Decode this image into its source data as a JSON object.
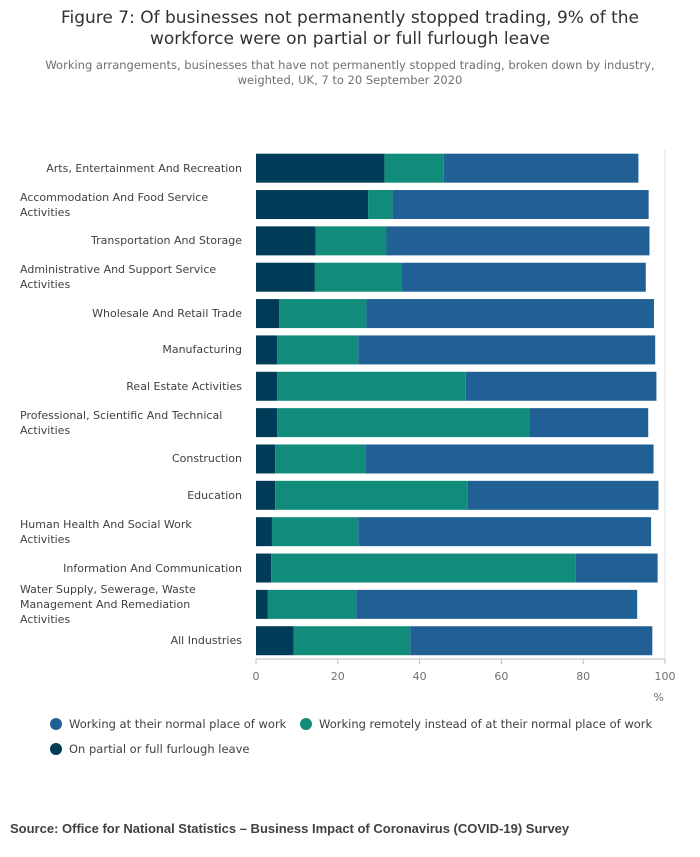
{
  "title": "Figure 7: Of businesses not permanently stopped trading, 9% of the workforce were on partial or full furlough leave",
  "subtitle": "Working arrangements, businesses that have not permanently stopped trading, broken down by industry, weighted, UK, 7 to 20 September 2020",
  "source": "Source: Office for National Statistics – Business Impact of Coronavirus (COVID-19) Survey",
  "colors": {
    "furlough": "#003c57",
    "remote": "#118c7b",
    "normal": "#206095"
  },
  "chart_data": {
    "type": "bar",
    "orientation": "horizontal",
    "stacked": true,
    "categories": [
      "Arts, Entertainment And Recreation",
      "Accommodation And Food Service Activities",
      "Transportation And Storage",
      "Administrative And Support Service Activities",
      "Wholesale And Retail Trade",
      "Manufacturing",
      "Real Estate Activities",
      "Professional, Scientific And Technical Activities",
      "Construction",
      "Education",
      "Human Health And Social Work Activities",
      "Information And Communication",
      "Water Supply, Sewerage, Waste Management And Remediation Activities",
      "All Industries"
    ],
    "series": [
      {
        "name": "On partial or full furlough leave",
        "color_key": "furlough",
        "values": [
          31.4,
          27.4,
          14.6,
          14.4,
          5.7,
          5.2,
          5.2,
          5.2,
          4.7,
          4.7,
          3.9,
          3.7,
          2.9,
          9.2
        ]
      },
      {
        "name": "Working remotely instead of at their normal place of work",
        "color_key": "remote",
        "values": [
          14.5,
          6.0,
          17.3,
          21.2,
          21.3,
          19.8,
          46.1,
          61.6,
          22.1,
          47.1,
          21.1,
          74.5,
          21.6,
          28.5
        ]
      },
      {
        "name": "Working at their normal place of work",
        "color_key": "normal",
        "values": [
          47.6,
          62.6,
          64.3,
          59.7,
          70.3,
          72.6,
          46.6,
          29.1,
          70.4,
          46.6,
          71.6,
          20.0,
          68.7,
          59.2
        ]
      }
    ],
    "xlim": [
      0,
      100
    ],
    "xticks": [
      "0",
      "20",
      "40",
      "60",
      "80",
      "100"
    ],
    "xunit": "%",
    "grid": false,
    "legend_position": "bottom",
    "legend_order": [
      "normal",
      "remote",
      "furlough"
    ]
  }
}
